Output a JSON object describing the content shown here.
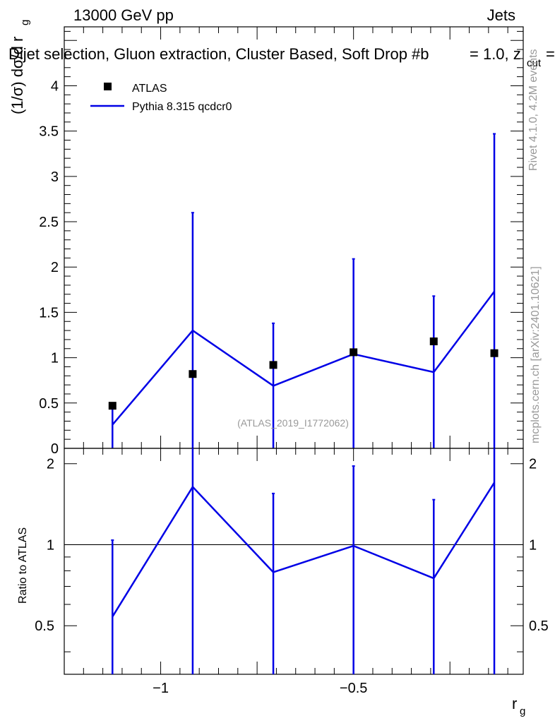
{
  "header": {
    "energy": "13000 GeV pp",
    "category": "Jets",
    "selection_title": "Dijet selection, Gluon extraction, Cluster Based, Soft Drop #b",
    "beta_text": "= 1.0, z",
    "zcut_sub": "cut",
    "zcut_tail": "=",
    "analysis_tag": "(ATLAS_2019_I1772062)"
  },
  "side_labels": {
    "rivet": "Rivet 4.1.0,  4.2M events",
    "mcplots": "mcplots.cern.ch [arXiv:2401.10621]"
  },
  "legend": {
    "data_label": "ATLAS",
    "mc_label": "Pythia 8.315 qcdcr0"
  },
  "colors": {
    "data": "#000000",
    "mc": "#0000e6",
    "reference_line": "#000000"
  },
  "chart_data": [
    {
      "type": "scatter",
      "panel": "main",
      "xlabel": "r",
      "xlabel_sub": "g",
      "ylabel": "(1/σ) dσ/d r",
      "ylabel_sub": "g",
      "xlim": [
        -1.25,
        -0.06
      ],
      "ylim": [
        0,
        4.65
      ],
      "yticks": [
        0,
        0.5,
        1,
        1.5,
        2,
        2.5,
        3,
        3.5,
        4
      ],
      "ytick_labels": [
        "0",
        "0.5",
        "1",
        "1.5",
        "2",
        "2.5",
        "3",
        "3.5",
        "4"
      ],
      "series": [
        {
          "name": "ATLAS",
          "style": "markers",
          "x": [
            -1.125,
            -0.917,
            -0.708,
            -0.5,
            -0.292,
            -0.135
          ],
          "y": [
            0.47,
            0.82,
            0.92,
            1.06,
            1.18,
            1.05
          ]
        },
        {
          "name": "Pythia 8.315 qcdcr0",
          "style": "line",
          "x": [
            -1.125,
            -0.917,
            -0.708,
            -0.5,
            -0.292,
            -0.135
          ],
          "y": [
            0.26,
            1.3,
            0.69,
            1.04,
            0.84,
            1.73
          ],
          "err_up": [
            0.47,
            2.6,
            1.38,
            2.09,
            1.68,
            3.47
          ],
          "err_down": [
            0,
            0,
            0,
            0,
            0,
            0
          ]
        }
      ]
    },
    {
      "type": "line",
      "panel": "ratio",
      "xlabel": "r",
      "xlabel_sub": "g",
      "ylabel": "Ratio to ATLAS",
      "xlim": [
        -1.25,
        -0.06
      ],
      "ylim": [
        0.33,
        2.28
      ],
      "log_y": true,
      "yticks": [
        0.5,
        1,
        2
      ],
      "ytick_labels": [
        "0.5",
        "1",
        "2"
      ],
      "xticks": [
        -1,
        -0.5
      ],
      "xtick_labels": [
        "−1",
        "−0.5"
      ],
      "reference": 1,
      "series": [
        {
          "name": "Pythia 8.315 qcdcr0",
          "x": [
            -1.125,
            -0.917,
            -0.708,
            -0.5,
            -0.292,
            -0.135
          ],
          "y": [
            0.54,
            1.64,
            0.79,
            0.99,
            0.75,
            1.7
          ],
          "err_up": [
            1.04,
            2.5,
            1.55,
            1.96,
            1.47,
            2.5
          ],
          "err_down": [
            0.3,
            0.3,
            0.3,
            0.3,
            0.3,
            0.3
          ]
        }
      ]
    }
  ]
}
